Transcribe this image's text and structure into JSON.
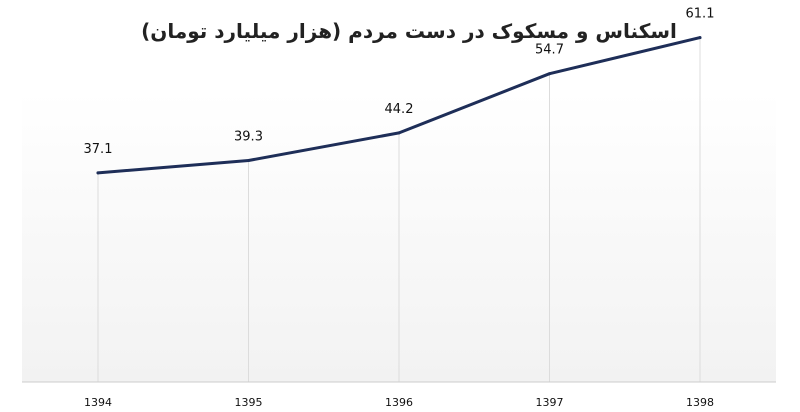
{
  "chart_data": {
    "type": "line",
    "title": "اسکناس و مسکوک در دست مردم (هزار میلیارد تومان)",
    "categories": [
      "1394",
      "1395",
      "1396",
      "1397",
      "1398"
    ],
    "values": [
      37.1,
      39.3,
      44.2,
      54.7,
      61.1
    ],
    "value_labels": [
      "37.1",
      "39.3",
      "44.2",
      "54.7",
      "61.1"
    ],
    "xlabel": "",
    "ylabel": "",
    "ylim": [
      0,
      66
    ],
    "grid": "vertical",
    "legend": "none",
    "colors": {
      "line": "#1e2e58",
      "grid": "#dcdcdc",
      "axis": "#cccccc",
      "background_top": "#ffffff",
      "background_bottom": "#f2f2f2"
    }
  }
}
